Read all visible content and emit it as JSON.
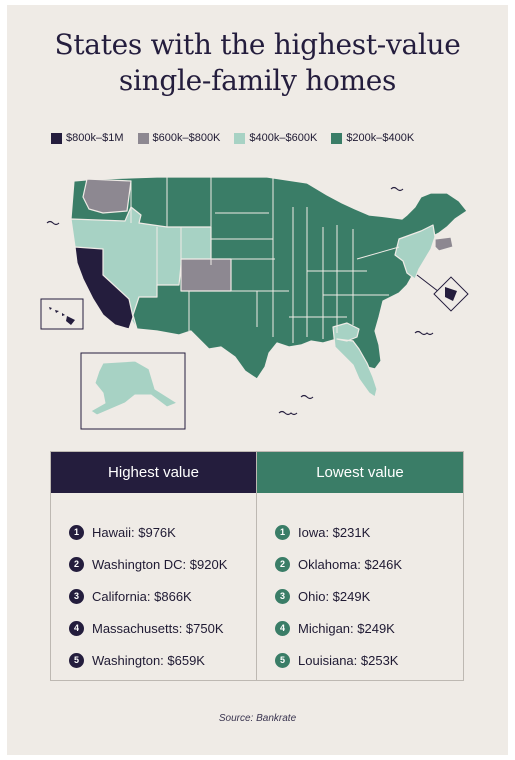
{
  "title": {
    "line1": "States with the highest-value",
    "line2": "single-family homes"
  },
  "legend": [
    {
      "label": "$800k–$1M",
      "color": "#241d3d"
    },
    {
      "label": "$600k–$800K",
      "color": "#8d8891"
    },
    {
      "label": "$400k–$600K",
      "color": "#a7d2c4"
    },
    {
      "label": "$200k–$400K",
      "color": "#3a7d67"
    }
  ],
  "map": {
    "colors": {
      "tier1": "#241d3d",
      "tier2": "#8d8891",
      "tier3": "#a7d2c4",
      "tier4": "#3a7d67",
      "stroke": "#efebe6"
    }
  },
  "table": {
    "highest": {
      "header": "Highest value",
      "items": [
        {
          "n": "1",
          "text": "Hawaii: $976K"
        },
        {
          "n": "2",
          "text": "Washington DC: $920K"
        },
        {
          "n": "3",
          "text": "California: $866K"
        },
        {
          "n": "4",
          "text": "Massachusetts: $750K"
        },
        {
          "n": "5",
          "text": "Washington: $659K"
        }
      ]
    },
    "lowest": {
      "header": "Lowest value",
      "items": [
        {
          "n": "1",
          "text": "Iowa: $231K"
        },
        {
          "n": "2",
          "text": "Oklahoma: $246K"
        },
        {
          "n": "3",
          "text": "Ohio: $249K"
        },
        {
          "n": "4",
          "text": "Michigan: $249K"
        },
        {
          "n": "5",
          "text": "Louisiana: $253K"
        }
      ]
    }
  },
  "source": "Source: Bankrate"
}
